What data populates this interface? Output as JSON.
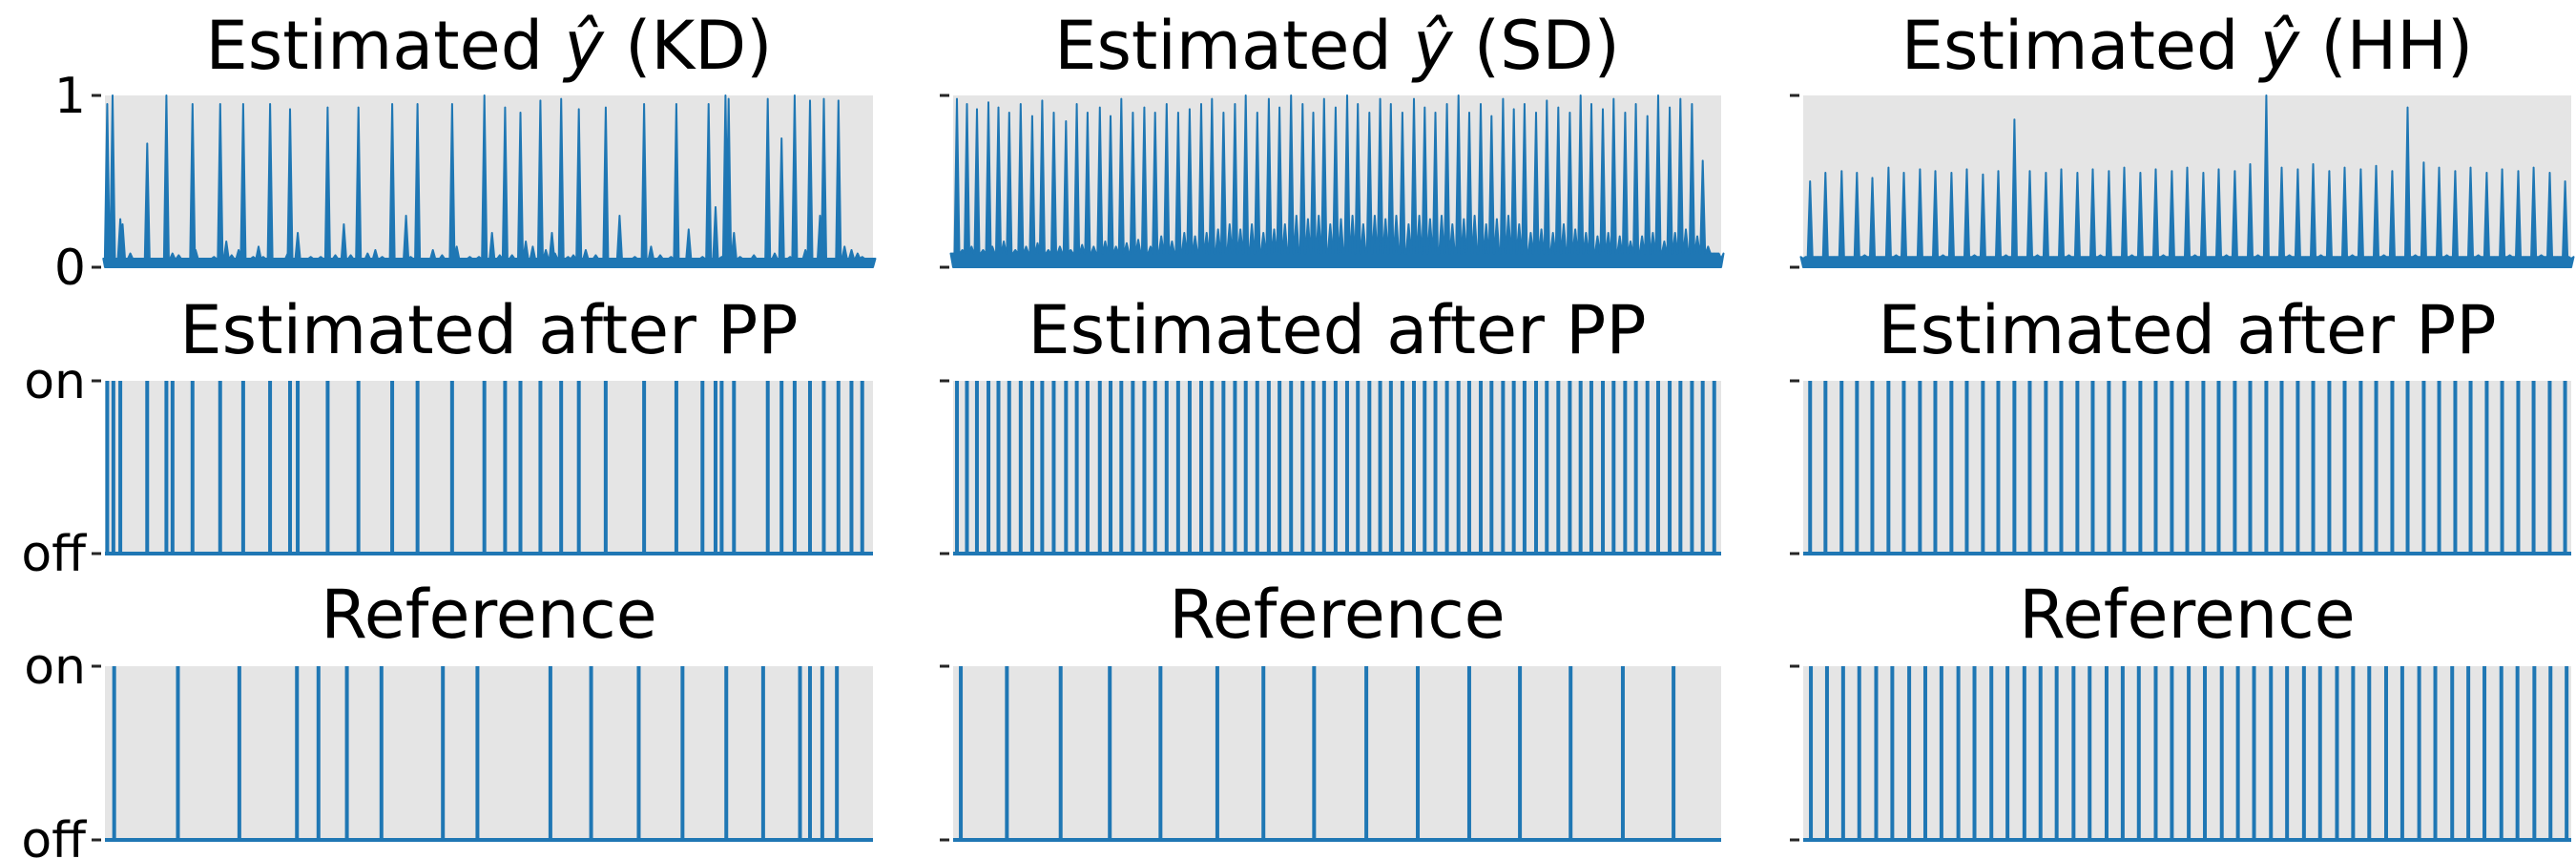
{
  "colors": {
    "series": "#1f77b4",
    "background": "#e5e5e5",
    "tick": "#262626"
  },
  "chart_data": [
    {
      "type": "area",
      "title_prefix": "Estimated ",
      "title_symbol": "ŷ",
      "title_suffix": " (KD)",
      "ylim": [
        0,
        1
      ],
      "yticks": [
        "1",
        "0"
      ],
      "xlim": [
        0,
        1000
      ],
      "baseline": 0.05,
      "x": [
        1,
        3,
        10,
        20,
        23,
        33,
        55,
        74,
        80,
        88,
        96,
        108,
        114,
        118,
        129,
        142,
        150,
        158,
        165,
        174,
        180,
        193,
        200,
        206,
        215,
        238,
        241,
        251,
        268,
        281,
        290,
        300,
        311,
        320,
        330,
        342,
        352,
        361,
        374,
        392,
        398,
        407,
        427,
        439,
        452,
        458,
        475,
        487,
        494,
        504,
        514,
        521,
        530,
        541,
        548,
        557,
        567,
        574,
        582,
        586,
        594,
        603,
        610,
        617,
        626,
        639,
        652,
        670,
        690,
        702,
        711,
        723,
        737,
        744,
        760,
        778,
        786,
        795,
        803,
        808,
        812,
        819,
        827,
        845,
        863,
        872,
        881,
        892,
        898,
        912,
        918,
        931,
        936,
        950,
        955,
        963,
        972,
        980,
        986,
        993,
        1000
      ],
      "values": [
        0.05,
        0.95,
        1.0,
        0.28,
        0.25,
        0.08,
        0.72,
        0.05,
        1.0,
        0.08,
        0.07,
        0.05,
        0.95,
        0.1,
        0.05,
        0.06,
        0.95,
        0.15,
        0.07,
        0.1,
        0.95,
        0.06,
        0.12,
        0.06,
        0.95,
        0.08,
        0.92,
        0.2,
        0.06,
        0.06,
        0.93,
        0.07,
        0.25,
        0.07,
        0.93,
        0.08,
        0.1,
        0.06,
        0.95,
        0.3,
        0.06,
        0.95,
        0.1,
        0.07,
        0.95,
        0.12,
        0.06,
        0.06,
        1.0,
        0.2,
        0.07,
        0.93,
        0.07,
        0.9,
        0.15,
        0.12,
        0.97,
        0.1,
        0.2,
        0.08,
        0.98,
        0.06,
        0.07,
        0.92,
        0.1,
        0.07,
        0.93,
        0.3,
        0.06,
        0.95,
        0.12,
        0.07,
        0.06,
        0.95,
        0.22,
        0.06,
        0.95,
        0.35,
        0.06,
        1.0,
        0.98,
        0.2,
        0.06,
        0.07,
        0.98,
        0.08,
        0.75,
        0.06,
        1.0,
        0.1,
        0.97,
        0.3,
        0.98,
        0.05,
        0.97,
        0.12,
        0.1,
        0.08,
        0.06,
        0.05,
        0.05
      ]
    },
    {
      "type": "area",
      "title_prefix": "Estimated ",
      "title_symbol": "ŷ",
      "title_suffix": " (SD)",
      "ylim": [
        0,
        1
      ],
      "yticks": [
        "",
        ""
      ],
      "xlim": [
        0,
        1000
      ],
      "baseline": 0.08,
      "x": [
        0,
        5,
        12,
        18,
        24,
        31,
        39,
        46,
        51,
        59,
        66,
        73,
        81,
        88,
        95,
        103,
        110,
        116,
        124,
        131,
        139,
        147,
        153,
        161,
        168,
        175,
        183,
        191,
        198,
        205,
        212,
        219,
        226,
        234,
        241,
        249,
        257,
        263,
        271,
        278,
        285,
        293,
        301,
        308,
        315,
        323,
        330,
        337,
        345,
        352,
        360,
        367,
        374,
        381,
        389,
        396,
        404,
        411,
        418,
        425,
        432,
        440,
        447,
        455,
        462,
        469,
        476,
        483,
        491,
        498,
        505,
        513,
        520,
        527,
        534,
        542,
        549,
        556,
        563,
        570,
        577,
        585,
        593,
        600,
        607,
        614,
        621,
        628,
        636,
        643,
        650,
        658,
        665,
        672,
        679,
        687,
        694,
        701,
        708,
        716,
        723,
        730,
        737,
        744,
        752,
        759,
        766,
        773,
        781,
        788,
        795,
        803,
        810,
        817,
        824,
        831,
        839,
        846,
        853,
        860,
        868,
        875,
        882,
        889,
        897,
        904,
        911,
        918,
        926,
        933,
        940,
        947,
        954,
        962,
        969,
        976,
        983,
        991,
        1000
      ],
      "values": [
        0.08,
        0.98,
        0.1,
        0.95,
        0.12,
        0.92,
        0.1,
        0.96,
        0.12,
        0.93,
        0.15,
        0.9,
        0.1,
        0.95,
        0.12,
        0.88,
        0.14,
        0.97,
        0.1,
        0.9,
        0.12,
        0.85,
        0.1,
        0.95,
        0.13,
        0.9,
        0.12,
        0.93,
        0.15,
        0.88,
        0.12,
        0.98,
        0.14,
        0.9,
        0.16,
        0.93,
        0.12,
        0.9,
        0.18,
        0.95,
        0.15,
        0.9,
        0.2,
        0.92,
        0.18,
        0.95,
        0.2,
        0.98,
        0.22,
        0.9,
        0.25,
        0.95,
        0.22,
        1.0,
        0.25,
        0.9,
        0.2,
        0.98,
        0.22,
        0.93,
        0.25,
        1.0,
        0.3,
        0.95,
        0.28,
        0.9,
        0.3,
        0.98,
        0.25,
        0.93,
        0.28,
        1.0,
        0.3,
        0.95,
        0.25,
        0.9,
        0.3,
        0.98,
        0.28,
        0.95,
        0.3,
        0.9,
        0.25,
        0.98,
        0.3,
        0.93,
        0.28,
        0.9,
        0.3,
        0.95,
        0.25,
        1.0,
        0.28,
        0.9,
        0.3,
        0.95,
        0.25,
        0.88,
        0.28,
        0.98,
        0.3,
        0.92,
        0.25,
        0.95,
        0.2,
        0.9,
        0.22,
        0.97,
        0.2,
        0.93,
        0.25,
        0.9,
        0.22,
        1.0,
        0.2,
        0.95,
        0.18,
        0.92,
        0.2,
        0.98,
        0.18,
        0.9,
        0.15,
        0.95,
        0.18,
        0.88,
        0.2,
        1.0,
        0.15,
        0.93,
        0.2,
        0.98,
        0.22,
        0.95,
        0.18,
        0.62,
        0.12,
        0.08,
        0.05
      ]
    },
    {
      "type": "area",
      "title_prefix": "Estimated ",
      "title_symbol": "ŷ",
      "title_suffix": " (HH)",
      "ylim": [
        0,
        1
      ],
      "yticks": [
        "",
        ""
      ],
      "xlim": [
        0,
        1000
      ],
      "baseline": 0.06,
      "x": [
        0,
        9,
        19,
        29,
        40,
        50,
        60,
        70,
        80,
        90,
        101,
        111,
        121,
        131,
        142,
        152,
        162,
        172,
        182,
        193,
        203,
        213,
        223,
        234,
        244,
        254,
        264,
        275,
        285,
        295,
        305,
        316,
        326,
        336,
        346,
        357,
        367,
        377,
        387,
        398,
        408,
        418,
        428,
        439,
        449,
        459,
        469,
        480,
        490,
        500,
        510,
        521,
        531,
        541,
        551,
        562,
        572,
        582,
        592,
        603,
        613,
        623,
        633,
        644,
        654,
        664,
        674,
        685,
        695,
        705,
        715,
        726,
        736,
        746,
        756,
        767,
        777,
        787,
        797,
        808,
        818,
        828,
        838,
        849,
        859,
        869,
        879,
        890,
        900,
        910,
        920,
        931,
        941,
        951,
        961,
        972,
        982,
        992,
        1000
      ],
      "values": [
        0.05,
        0.5,
        0.06,
        0.55,
        0.06,
        0.56,
        0.06,
        0.55,
        0.07,
        0.52,
        0.06,
        0.58,
        0.07,
        0.55,
        0.06,
        0.57,
        0.06,
        0.56,
        0.07,
        0.55,
        0.06,
        0.57,
        0.07,
        0.54,
        0.06,
        0.56,
        0.07,
        0.86,
        0.06,
        0.56,
        0.07,
        0.55,
        0.06,
        0.57,
        0.07,
        0.55,
        0.06,
        0.57,
        0.07,
        0.56,
        0.06,
        0.58,
        0.07,
        0.55,
        0.06,
        0.57,
        0.07,
        0.56,
        0.06,
        0.58,
        0.07,
        0.55,
        0.06,
        0.57,
        0.07,
        0.56,
        0.06,
        0.6,
        0.07,
        1.0,
        0.06,
        0.58,
        0.07,
        0.57,
        0.06,
        0.6,
        0.07,
        0.56,
        0.06,
        0.58,
        0.07,
        0.57,
        0.06,
        0.59,
        0.07,
        0.56,
        0.06,
        0.93,
        0.07,
        0.61,
        0.06,
        0.58,
        0.07,
        0.56,
        0.06,
        0.58,
        0.07,
        0.55,
        0.06,
        0.57,
        0.07,
        0.56,
        0.06,
        0.58,
        0.07,
        0.55,
        0.06,
        0.5,
        0.05
      ]
    },
    {
      "type": "line",
      "title": "Estimated after PP",
      "yticks": [
        "on",
        "off"
      ],
      "xlim": [
        0,
        1000
      ],
      "on_at": [
        3,
        11,
        20,
        55,
        80,
        88,
        114,
        150,
        180,
        215,
        241,
        251,
        290,
        330,
        374,
        407,
        452,
        494,
        521,
        541,
        567,
        594,
        617,
        652,
        702,
        744,
        778,
        795,
        803,
        819,
        863,
        881,
        898,
        918,
        936,
        955,
        972,
        986
      ]
    },
    {
      "type": "line",
      "title": "Estimated after PP",
      "yticks": [
        "",
        ""
      ],
      "xlim": [
        0,
        1000
      ],
      "on_at": [
        5,
        18,
        31,
        46,
        59,
        73,
        88,
        103,
        116,
        131,
        147,
        161,
        175,
        191,
        205,
        219,
        234,
        249,
        263,
        278,
        293,
        308,
        323,
        337,
        352,
        367,
        381,
        396,
        411,
        425,
        440,
        455,
        469,
        483,
        498,
        513,
        527,
        542,
        556,
        570,
        585,
        600,
        614,
        628,
        643,
        658,
        672,
        687,
        701,
        716,
        730,
        744,
        759,
        773,
        788,
        803,
        817,
        831,
        846,
        860,
        875,
        889,
        904,
        918,
        933,
        947,
        962,
        976,
        991
      ]
    },
    {
      "type": "line",
      "title": "Estimated after PP",
      "yticks": [
        "",
        ""
      ],
      "xlim": [
        0,
        1000
      ],
      "on_at": [
        9,
        29,
        50,
        70,
        90,
        111,
        131,
        152,
        172,
        193,
        213,
        234,
        254,
        275,
        295,
        316,
        336,
        357,
        377,
        398,
        418,
        439,
        459,
        480,
        500,
        521,
        541,
        562,
        582,
        603,
        623,
        644,
        664,
        685,
        705,
        726,
        746,
        767,
        787,
        808,
        828,
        849,
        869,
        890,
        910,
        931,
        951,
        972,
        992
      ]
    },
    {
      "type": "line",
      "title": "Reference",
      "yticks": [
        "on",
        "off"
      ],
      "xlim": [
        0,
        1000
      ],
      "on_at": [
        12,
        95,
        175,
        250,
        278,
        315,
        360,
        440,
        485,
        580,
        633,
        695,
        752,
        809,
        857,
        905,
        918,
        934,
        953
      ]
    },
    {
      "type": "line",
      "title": "Reference",
      "yticks": [
        "",
        ""
      ],
      "xlim": [
        0,
        1000
      ],
      "on_at": [
        10,
        70,
        140,
        204,
        270,
        344,
        404,
        470,
        538,
        605,
        672,
        738,
        804,
        872,
        938
      ]
    },
    {
      "type": "line",
      "title": "Reference",
      "yticks": [
        "",
        ""
      ],
      "xlim": [
        0,
        1000
      ],
      "on_at": [
        10,
        31,
        52,
        73,
        95,
        116,
        138,
        159,
        180,
        202,
        223,
        245,
        266,
        288,
        309,
        330,
        352,
        373,
        395,
        416,
        437,
        459,
        480,
        502,
        523,
        545,
        566,
        587,
        609,
        630,
        652,
        673,
        695,
        716,
        737,
        759,
        780,
        802,
        823,
        845,
        866,
        887,
        909,
        930,
        952,
        973,
        994
      ]
    }
  ]
}
